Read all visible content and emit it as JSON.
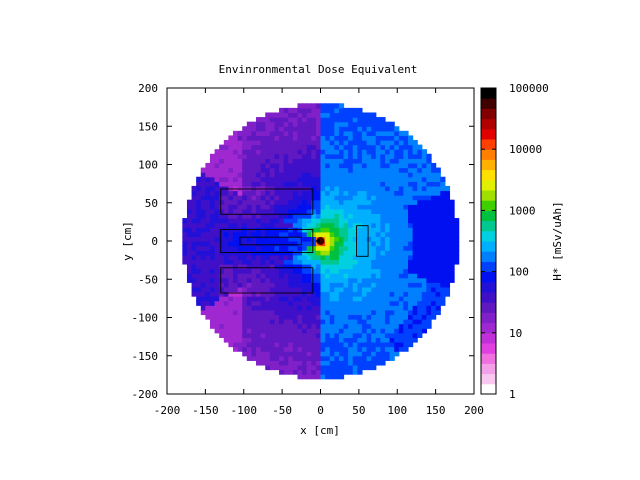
{
  "chart_data": {
    "type": "heatmap",
    "title": "Envinronmental Dose Equivalent",
    "xlabel": "x [cm]",
    "ylabel": "y [cm]",
    "xlim": [
      -200,
      200
    ],
    "ylim": [
      -200,
      200
    ],
    "x_ticks": [
      "-200",
      "-150",
      "-100",
      "-50",
      "0",
      "50",
      "100",
      "150",
      "200"
    ],
    "y_ticks": [
      "200",
      "150",
      "100",
      "50",
      "0",
      "-50",
      "-100",
      "-150",
      "-200"
    ],
    "grid": false,
    "colorbar": {
      "label": "H* [mSv/uAh]",
      "scale": "log",
      "range": [
        1,
        100000
      ],
      "tick_labels": [
        "100000",
        "10000",
        "1000",
        "100",
        "10",
        "1"
      ],
      "colors": [
        "#ffffff",
        "#f8c8f0",
        "#f4a0e8",
        "#f070e0",
        "#e040e0",
        "#c030d8",
        "#a028d0",
        "#8020c8",
        "#6018c0",
        "#4010c8",
        "#2010d8",
        "#0010f0",
        "#0040ff",
        "#0080ff",
        "#00b0ff",
        "#00d0e0",
        "#00c890",
        "#00c040",
        "#40d000",
        "#a0e000",
        "#e0f000",
        "#ffe000",
        "#ffb000",
        "#ff8000",
        "#ff4000",
        "#e00000",
        "#b00000",
        "#800000",
        "#400000",
        "#000000"
      ]
    },
    "field": {
      "circle_radius_cm": 180,
      "source_center_cm": [
        0,
        0
      ],
      "regions": [
        {
          "name": "far-right-wedge",
          "level": 100
        },
        {
          "name": "right-sector",
          "level": 300
        },
        {
          "name": "left-sector",
          "level": 15
        },
        {
          "name": "source-core",
          "level": 50000
        }
      ]
    },
    "geometry": {
      "boxes_cm": [
        {
          "x": [
            -130,
            -10
          ],
          "y": [
            35,
            68
          ]
        },
        {
          "x": [
            -130,
            -10
          ],
          "y": [
            -68,
            -35
          ]
        },
        {
          "x": [
            -130,
            -10
          ],
          "y": [
            -15,
            15
          ]
        },
        {
          "x": [
            -105,
            -25
          ],
          "y": [
            -5,
            5
          ]
        },
        {
          "x": [
            47,
            62
          ],
          "y": [
            -20,
            20
          ]
        }
      ]
    }
  }
}
